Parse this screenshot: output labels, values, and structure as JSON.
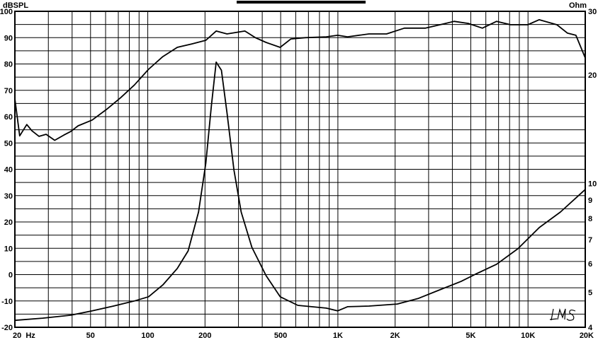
{
  "chart_data": {
    "type": "line",
    "xscale": "log",
    "xlim": [
      20,
      20000
    ],
    "ylim": [
      -20,
      100
    ],
    "y2lim": [
      4,
      30
    ],
    "y2scale": "log",
    "grid": true,
    "ylabel": "dBSPL",
    "y2label": "Ohm",
    "x_ticks": [
      {
        "v": 20,
        "t": "20  Hz"
      },
      {
        "v": 50,
        "t": "50"
      },
      {
        "v": 100,
        "t": "100"
      },
      {
        "v": 200,
        "t": "200"
      },
      {
        "v": 500,
        "t": "500"
      },
      {
        "v": 1000,
        "t": "1K"
      },
      {
        "v": 2000,
        "t": "2K"
      },
      {
        "v": 5000,
        "t": "5K"
      },
      {
        "v": 10000,
        "t": "10K"
      },
      {
        "v": 20000,
        "t": "20K"
      }
    ],
    "y_ticks": [
      "100",
      "90",
      "80",
      "70",
      "60",
      "50",
      "40",
      "30",
      "20",
      "10",
      "0",
      "-10",
      "-20"
    ],
    "y2_ticks": [
      {
        "v": 30,
        "t": "30"
      },
      {
        "v": 20,
        "t": "20"
      },
      {
        "v": 10,
        "t": "10"
      },
      {
        "v": 9,
        "t": "9"
      },
      {
        "v": 8,
        "t": "8"
      },
      {
        "v": 7,
        "t": "7"
      },
      {
        "v": 6,
        "t": "6"
      },
      {
        "v": 5,
        "t": "5"
      },
      {
        "v": 4,
        "t": "4"
      }
    ],
    "series": [
      {
        "axis": "left",
        "color": "#000000",
        "x": [
          20,
          21.2,
          23.1,
          24.6,
          26.8,
          29.2,
          32.4,
          36.2,
          39.4,
          43,
          51,
          60.6,
          72,
          85,
          101,
          120,
          143,
          170,
          202,
          229,
          261,
          324,
          368,
          419,
          497,
          566,
          672,
          869,
          997,
          1124,
          1456,
          1804,
          2236,
          2891,
          3588,
          4083,
          4846,
          5755,
          6834,
          8112,
          9976,
          11440,
          14190,
          16140,
          17860,
          20000
        ],
        "y": [
          66.7,
          52.7,
          57,
          54.6,
          52.5,
          53.3,
          51,
          53,
          54.4,
          56.5,
          58.7,
          62.7,
          67.2,
          72,
          78,
          82.8,
          86.3,
          87.6,
          89,
          92.5,
          91.4,
          92.5,
          90,
          88.2,
          86.3,
          89.5,
          90,
          90.3,
          90.9,
          90.3,
          91.4,
          91.4,
          93.6,
          93.6,
          95.2,
          96.2,
          95.4,
          93.6,
          96.2,
          94.9,
          94.9,
          96.8,
          94.9,
          91.7,
          90.9,
          82.3
        ]
      },
      {
        "axis": "right",
        "color": "#000000",
        "x": [
          20,
          28,
          39.4,
          51,
          66,
          85,
          101,
          120,
          143,
          163,
          185,
          202,
          216,
          229,
          244,
          261,
          284,
          310,
          353,
          419,
          497,
          616,
          869,
          997,
          1124,
          1456,
          2052,
          2655,
          3436,
          4446,
          5283,
          6834,
          8846,
          11440,
          14800,
          20000
        ],
        "y": [
          4.18,
          4.24,
          4.32,
          4.44,
          4.58,
          4.73,
          4.86,
          5.24,
          5.82,
          6.51,
          8.34,
          11.4,
          16.4,
          21.7,
          20.6,
          15.7,
          10.9,
          8.34,
          6.66,
          5.56,
          4.86,
          4.6,
          4.52,
          4.44,
          4.56,
          4.58,
          4.64,
          4.81,
          5.08,
          5.36,
          5.61,
          5.98,
          6.6,
          7.55,
          8.34,
          9.63
        ]
      }
    ]
  },
  "logo": "LMS"
}
